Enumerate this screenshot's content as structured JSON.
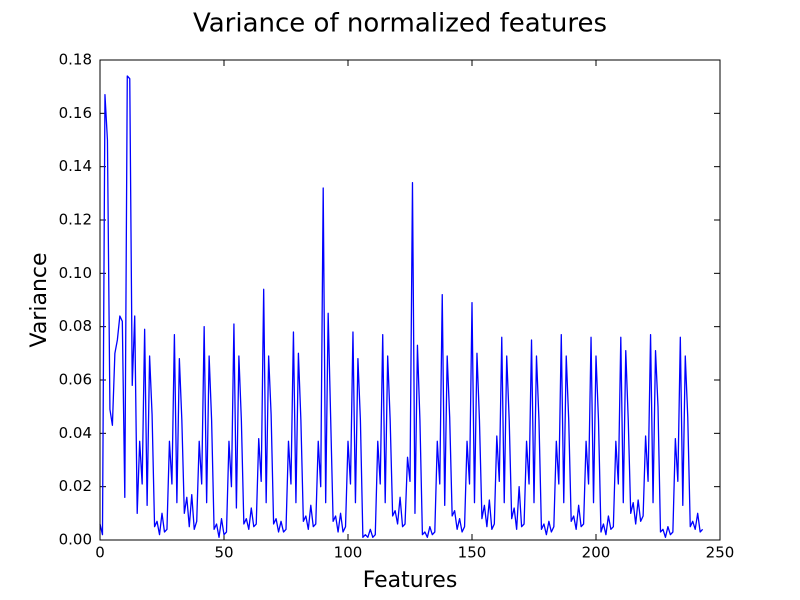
{
  "chart_data": {
    "type": "line",
    "title": "Variance of normalized features",
    "xlabel": "Features",
    "ylabel": "Variance",
    "color": "#0000ff",
    "xlim": [
      0,
      250
    ],
    "xticks": [
      0,
      50,
      100,
      150,
      200,
      250
    ],
    "ylim": [
      0,
      0.18
    ],
    "yticks": [
      {
        "value": 0,
        "label": "0.00"
      },
      0.02,
      0.04,
      0.06,
      0.08,
      {
        "value": 0.1,
        "label": "0.10"
      },
      0.12,
      0.14,
      0.16,
      0.18
    ],
    "x": [
      0,
      1,
      2,
      3,
      4,
      5,
      6,
      7,
      8,
      9,
      10,
      11,
      12,
      13,
      14,
      15,
      16,
      17,
      18,
      19,
      20,
      21,
      22,
      23,
      24,
      25,
      26,
      27,
      28,
      29,
      30,
      31,
      32,
      33,
      34,
      35,
      36,
      37,
      38,
      39,
      40,
      41,
      42,
      43,
      44,
      45,
      46,
      47,
      48,
      49,
      50,
      51,
      52,
      53,
      54,
      55,
      56,
      57,
      58,
      59,
      60,
      61,
      62,
      63,
      64,
      65,
      66,
      67,
      68,
      69,
      70,
      71,
      72,
      73,
      74,
      75,
      76,
      77,
      78,
      79,
      80,
      81,
      82,
      83,
      84,
      85,
      86,
      87,
      88,
      89,
      90,
      91,
      92,
      93,
      94,
      95,
      96,
      97,
      98,
      99,
      100,
      101,
      102,
      103,
      104,
      105,
      106,
      107,
      108,
      109,
      110,
      111,
      112,
      113,
      114,
      115,
      116,
      117,
      118,
      119,
      120,
      121,
      122,
      123,
      124,
      125,
      126,
      127,
      128,
      129,
      130,
      131,
      132,
      133,
      134,
      135,
      136,
      137,
      138,
      139,
      140,
      141,
      142,
      143,
      144,
      145,
      146,
      147,
      148,
      149,
      150,
      151,
      152,
      153,
      154,
      155,
      156,
      157,
      158,
      159,
      160,
      161,
      162,
      163,
      164,
      165,
      166,
      167,
      168,
      169,
      170,
      171,
      172,
      173,
      174,
      175,
      176,
      177,
      178,
      179,
      180,
      181,
      182,
      183,
      184,
      185,
      186,
      187,
      188,
      189,
      190,
      191,
      192,
      193,
      194,
      195,
      196,
      197,
      198,
      199,
      200,
      201,
      202,
      203,
      204,
      205,
      206,
      207,
      208,
      209,
      210,
      211,
      212,
      213,
      214,
      215,
      216,
      217,
      218,
      219,
      220,
      221,
      222,
      223,
      224,
      225,
      226,
      227,
      228,
      229,
      230,
      231,
      232,
      233,
      234,
      235,
      236,
      237,
      238,
      239,
      240,
      241,
      242,
      243
    ],
    "values": [
      0.006,
      0.002,
      0.167,
      0.15,
      0.049,
      0.043,
      0.07,
      0.075,
      0.084,
      0.082,
      0.016,
      0.174,
      0.173,
      0.058,
      0.084,
      0.01,
      0.037,
      0.021,
      0.079,
      0.013,
      0.069,
      0.047,
      0.005,
      0.007,
      0.002,
      0.01,
      0.003,
      0.004,
      0.037,
      0.021,
      0.077,
      0.014,
      0.068,
      0.045,
      0.01,
      0.016,
      0.005,
      0.017,
      0.004,
      0.007,
      0.037,
      0.021,
      0.08,
      0.014,
      0.069,
      0.045,
      0.004,
      0.006,
      0.001,
      0.008,
      0.002,
      0.003,
      0.037,
      0.02,
      0.081,
      0.012,
      0.069,
      0.045,
      0.006,
      0.008,
      0.004,
      0.012,
      0.005,
      0.006,
      0.038,
      0.022,
      0.094,
      0.014,
      0.069,
      0.047,
      0.006,
      0.008,
      0.003,
      0.007,
      0.003,
      0.004,
      0.037,
      0.021,
      0.078,
      0.014,
      0.07,
      0.045,
      0.007,
      0.009,
      0.004,
      0.013,
      0.005,
      0.006,
      0.037,
      0.02,
      0.132,
      0.014,
      0.085,
      0.046,
      0.007,
      0.009,
      0.003,
      0.01,
      0.003,
      0.005,
      0.037,
      0.021,
      0.078,
      0.014,
      0.068,
      0.045,
      0.001,
      0.002,
      0.001,
      0.004,
      0.001,
      0.002,
      0.037,
      0.021,
      0.077,
      0.014,
      0.069,
      0.045,
      0.009,
      0.011,
      0.006,
      0.016,
      0.005,
      0.006,
      0.031,
      0.022,
      0.134,
      0.01,
      0.073,
      0.045,
      0.002,
      0.003,
      0.001,
      0.005,
      0.002,
      0.003,
      0.037,
      0.021,
      0.092,
      0.013,
      0.069,
      0.046,
      0.009,
      0.011,
      0.004,
      0.008,
      0.003,
      0.005,
      0.037,
      0.021,
      0.089,
      0.014,
      0.07,
      0.045,
      0.008,
      0.013,
      0.005,
      0.015,
      0.004,
      0.006,
      0.039,
      0.022,
      0.076,
      0.014,
      0.069,
      0.045,
      0.008,
      0.012,
      0.004,
      0.02,
      0.005,
      0.006,
      0.037,
      0.021,
      0.075,
      0.014,
      0.069,
      0.045,
      0.004,
      0.006,
      0.002,
      0.007,
      0.003,
      0.005,
      0.037,
      0.021,
      0.077,
      0.014,
      0.069,
      0.045,
      0.007,
      0.009,
      0.004,
      0.013,
      0.005,
      0.006,
      0.037,
      0.021,
      0.076,
      0.014,
      0.069,
      0.045,
      0.003,
      0.006,
      0.002,
      0.009,
      0.004,
      0.005,
      0.037,
      0.021,
      0.076,
      0.014,
      0.071,
      0.045,
      0.01,
      0.014,
      0.006,
      0.015,
      0.007,
      0.009,
      0.039,
      0.022,
      0.077,
      0.014,
      0.071,
      0.05,
      0.003,
      0.004,
      0.001,
      0.005,
      0.002,
      0.003,
      0.038,
      0.022,
      0.076,
      0.013,
      0.069,
      0.046,
      0.005,
      0.007,
      0.004,
      0.01,
      0.003,
      0.004
    ]
  }
}
